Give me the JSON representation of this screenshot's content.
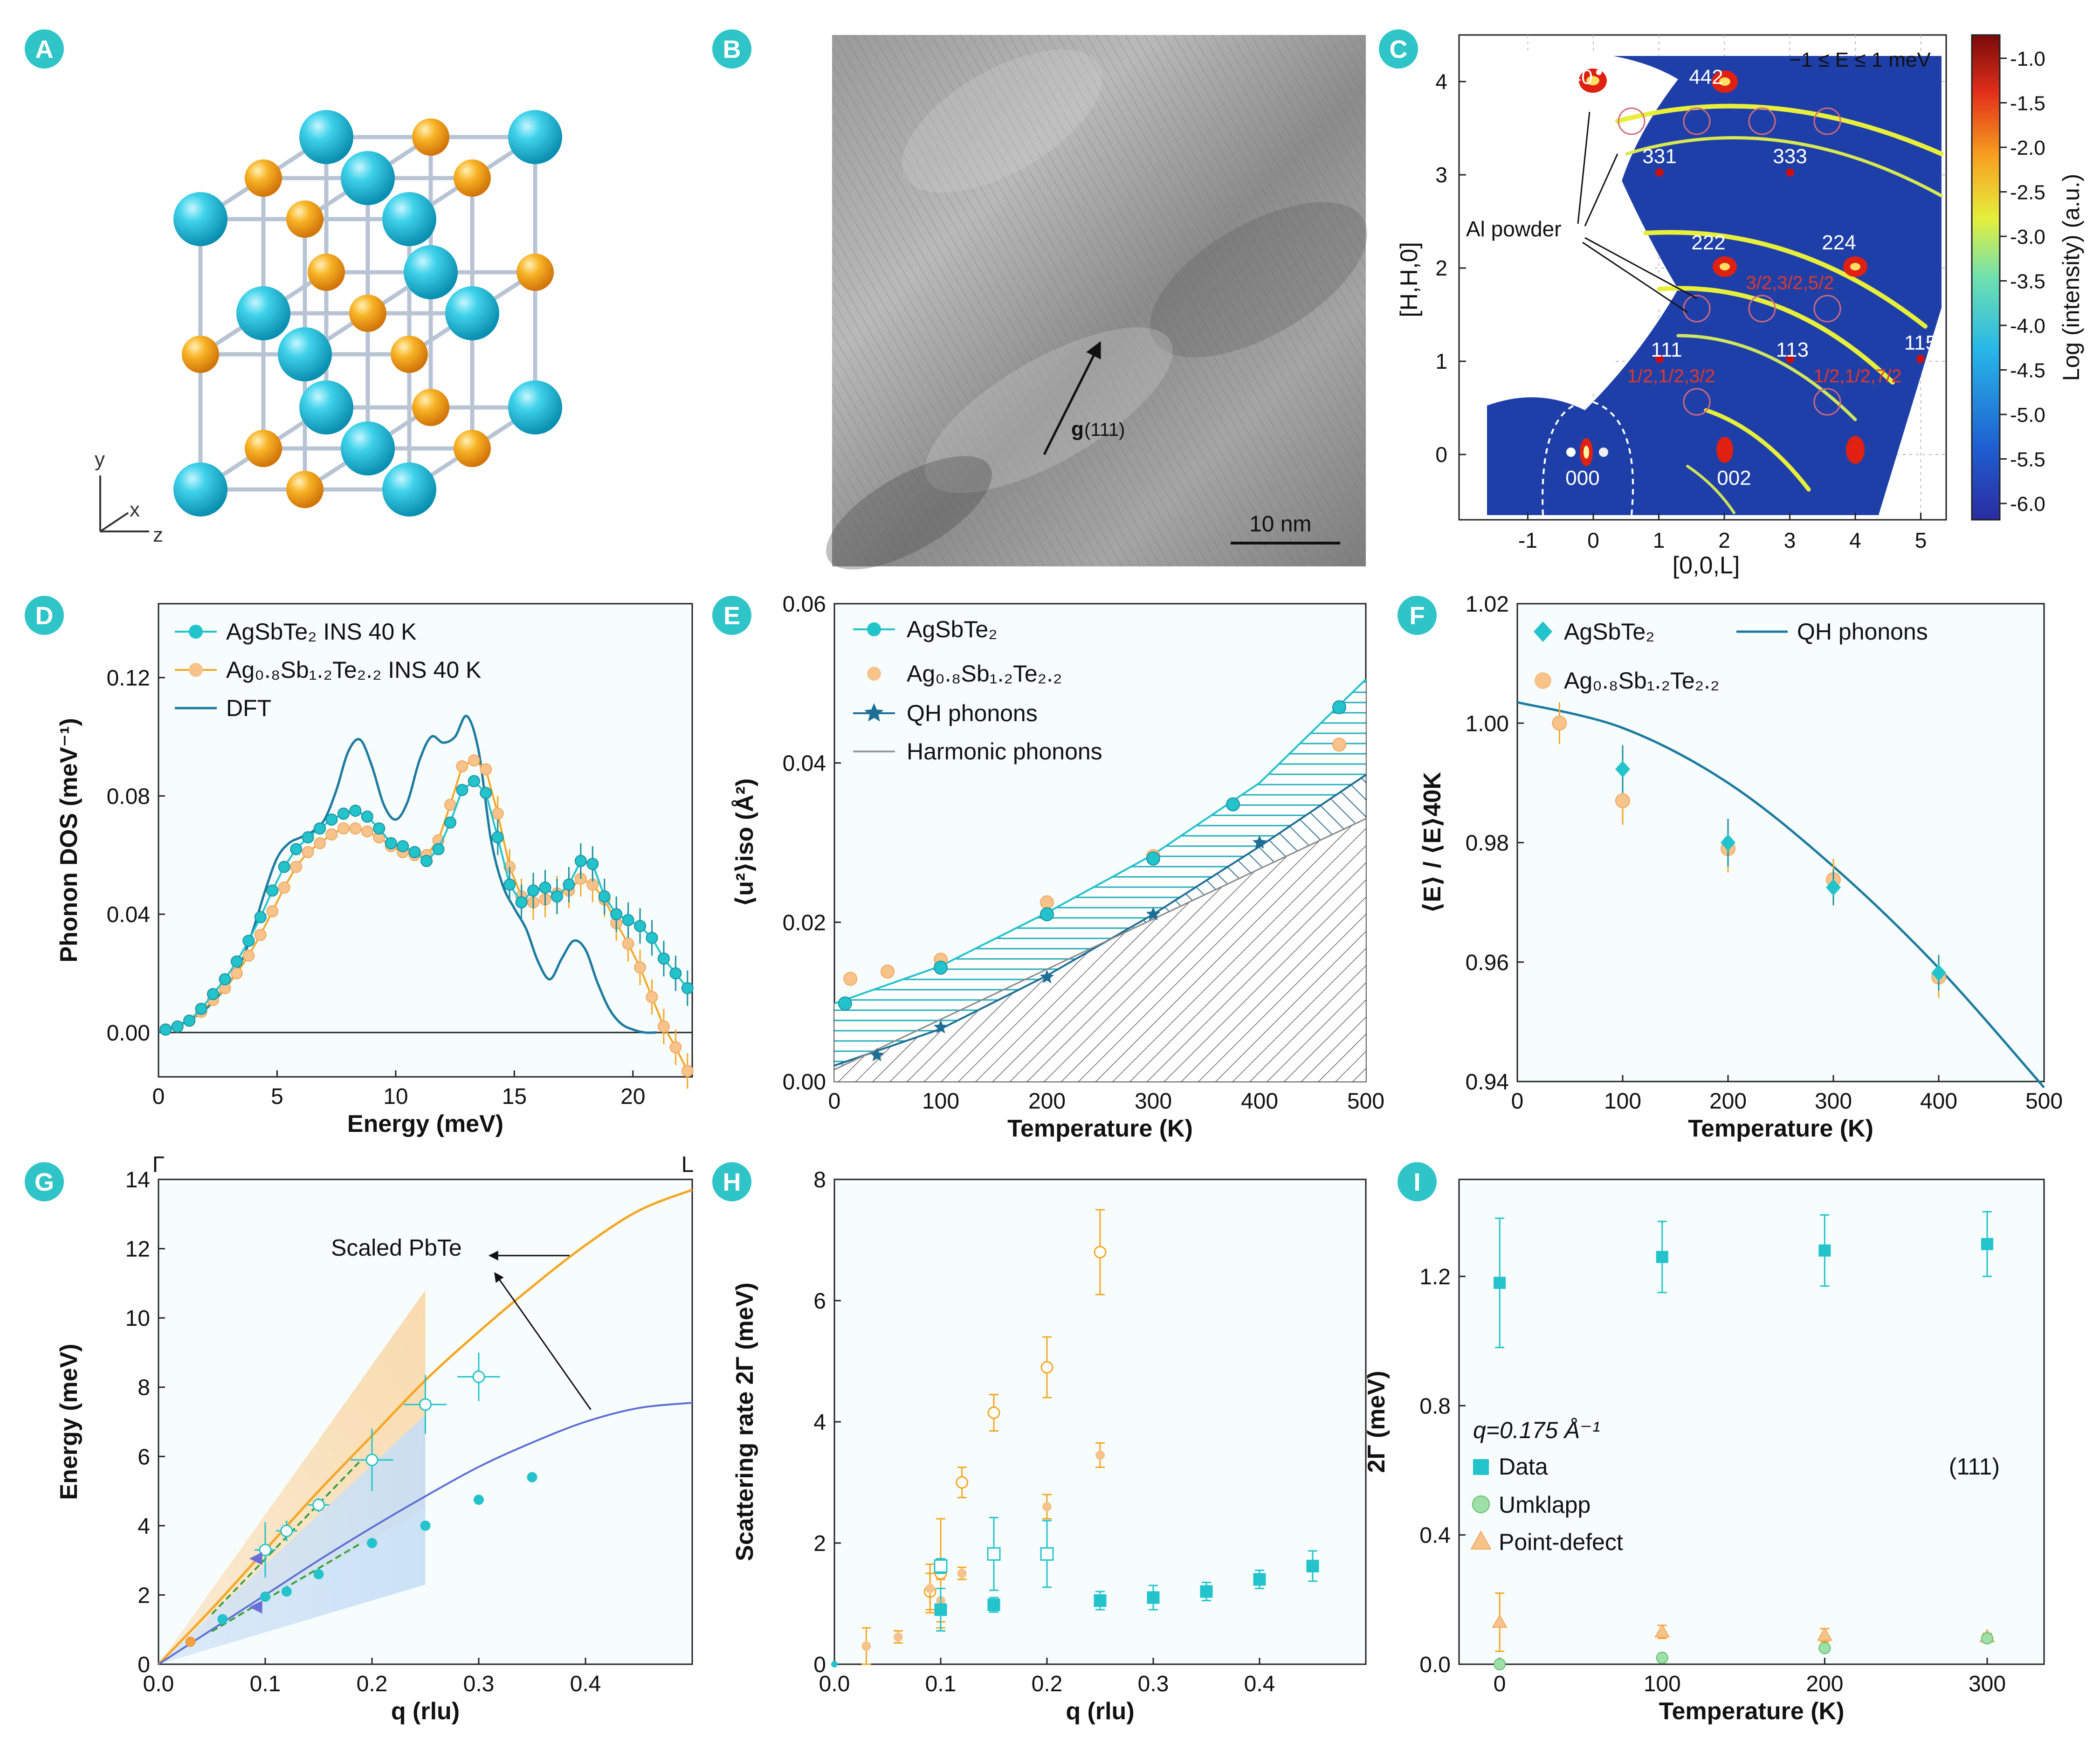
{
  "colors": {
    "teal": "#23c3cc",
    "teal_dark": "#1a8fa0",
    "orange": "#f5a623",
    "peach": "#f7c38b",
    "dft_blue": "#1b7aa0",
    "navy": "#2a5f9e",
    "badge": "#2fc4c7",
    "cyan_atom": "#1ec3dc",
    "gold_atom": "#f6a21a",
    "pbte_blue": "#5b6fd6"
  },
  "panels": {
    "A": {
      "letter": "A",
      "axes": {
        "y": "y",
        "x": "x",
        "z": "z"
      }
    },
    "B": {
      "letter": "B",
      "vector": "g",
      "vector_index": "(111)",
      "scalebar": "10 nm"
    },
    "C": {
      "letter": "C",
      "energy_window": "−1 ≤ E ≤ 1 meV",
      "xlabel": "[0,0,L]",
      "ylabel": "[H,H,0]",
      "xticks": [
        "-1",
        "0",
        "1",
        "2",
        "3",
        "4",
        "5"
      ],
      "yticks": [
        "0",
        "1",
        "2",
        "3",
        "4"
      ],
      "colorbar_label": "Log (intensity) (a.u.)",
      "colorbar_ticks": [
        "-1.0",
        "-1.5",
        "-2.0",
        "-2.5",
        "-3.0",
        "-3.5",
        "-4.0",
        "-4.5",
        "-5.0",
        "-5.5",
        "-6.0"
      ],
      "al_label": "Al powder",
      "peaks": [
        "440",
        "442",
        "331",
        "333",
        "222",
        "224",
        "111",
        "113",
        "115",
        "000",
        "002"
      ],
      "half_labels": [
        "3/2,3/2,5/2",
        "1/2,1/2,3/2",
        "1/2,1/2,7/2"
      ]
    },
    "D": {
      "letter": "D"
    },
    "E": {
      "letter": "E"
    },
    "F": {
      "letter": "F"
    },
    "G": {
      "letter": "G",
      "gamma": "Γ",
      "L": "L",
      "annotation": "Scaled PbTe"
    },
    "H": {
      "letter": "H"
    },
    "I": {
      "letter": "I",
      "q_label": "q=0.175 Å⁻¹",
      "index": "(111)"
    }
  },
  "chart_data": [
    {
      "panel": "D",
      "type": "line",
      "xlabel": "Energy (meV)",
      "ylabel": "Phonon DOS (meV⁻¹)",
      "xlim": [
        0,
        22.5
      ],
      "ylim": [
        -0.015,
        0.145
      ],
      "xticks": [
        0,
        5,
        10,
        15,
        20
      ],
      "yticks": [
        0.0,
        0.04,
        0.08,
        0.12
      ],
      "ytick_labels": [
        "0.00",
        "0.04",
        "0.08",
        "0.12"
      ],
      "legend": [
        "AgSbTe₂ INS 40 K",
        "Ag₀.₈Sb₁.₂Te₂.₂ INS 40 K",
        "DFT"
      ],
      "series": [
        {
          "name": "AgSbTe₂ INS 40 K",
          "x": [
            0.3,
            0.8,
            1.3,
            1.8,
            2.3,
            2.8,
            3.3,
            3.8,
            4.3,
            4.8,
            5.3,
            5.8,
            6.3,
            6.8,
            7.3,
            7.8,
            8.3,
            8.8,
            9.3,
            9.8,
            10.3,
            10.8,
            11.3,
            11.8,
            12.3,
            12.8,
            13.3,
            13.8,
            14.3,
            14.8,
            15.3,
            15.8,
            16.3,
            16.8,
            17.3,
            17.8,
            18.3,
            18.8,
            19.3,
            19.8,
            20.3,
            20.8,
            21.3,
            21.8,
            22.3
          ],
          "y": [
            0.001,
            0.002,
            0.004,
            0.008,
            0.013,
            0.018,
            0.024,
            0.031,
            0.039,
            0.048,
            0.056,
            0.062,
            0.066,
            0.069,
            0.072,
            0.074,
            0.075,
            0.073,
            0.069,
            0.064,
            0.063,
            0.061,
            0.058,
            0.062,
            0.071,
            0.082,
            0.085,
            0.081,
            0.066,
            0.05,
            0.044,
            0.048,
            0.049,
            0.046,
            0.05,
            0.058,
            0.057,
            0.046,
            0.04,
            0.038,
            0.036,
            0.032,
            0.025,
            0.02,
            0.015
          ]
        },
        {
          "name": "Ag₀.₈Sb₁.₂Te₂.₂ INS 40 K",
          "x": [
            0.3,
            0.8,
            1.3,
            1.8,
            2.3,
            2.8,
            3.3,
            3.8,
            4.3,
            4.8,
            5.3,
            5.8,
            6.3,
            6.8,
            7.3,
            7.8,
            8.3,
            8.8,
            9.3,
            9.8,
            10.3,
            10.8,
            11.3,
            11.8,
            12.3,
            12.8,
            13.3,
            13.8,
            14.3,
            14.8,
            15.3,
            15.8,
            16.3,
            16.8,
            17.3,
            17.8,
            18.3,
            18.8,
            19.3,
            19.8,
            20.3,
            20.8,
            21.3,
            21.8,
            22.3
          ],
          "y": [
            0.001,
            0.002,
            0.004,
            0.007,
            0.011,
            0.015,
            0.02,
            0.026,
            0.033,
            0.041,
            0.049,
            0.056,
            0.061,
            0.064,
            0.067,
            0.069,
            0.069,
            0.068,
            0.066,
            0.063,
            0.061,
            0.06,
            0.06,
            0.065,
            0.077,
            0.09,
            0.092,
            0.089,
            0.074,
            0.056,
            0.046,
            0.044,
            0.045,
            0.047,
            0.048,
            0.052,
            0.05,
            0.045,
            0.037,
            0.03,
            0.022,
            0.012,
            0.002,
            -0.005,
            -0.013
          ]
        },
        {
          "name": "DFT",
          "x": [
            0,
            1,
            2,
            3,
            3.5,
            4,
            4.5,
            5,
            5.5,
            6,
            6.5,
            7,
            7.5,
            8,
            8.5,
            9,
            9.5,
            10,
            10.5,
            11,
            11.5,
            12,
            12.5,
            13,
            13.5,
            14,
            14.5,
            15,
            15.5,
            16,
            16.5,
            17,
            17.5,
            18,
            18.5,
            19,
            19.5,
            20,
            20.5,
            21
          ],
          "y": [
            0,
            0.003,
            0.008,
            0.017,
            0.024,
            0.035,
            0.048,
            0.059,
            0.064,
            0.066,
            0.068,
            0.072,
            0.082,
            0.095,
            0.099,
            0.09,
            0.077,
            0.072,
            0.078,
            0.092,
            0.1,
            0.098,
            0.1,
            0.107,
            0.095,
            0.066,
            0.05,
            0.042,
            0.035,
            0.024,
            0.018,
            0.025,
            0.031,
            0.028,
            0.017,
            0.008,
            0.003,
            0.001,
            0,
            0
          ]
        }
      ]
    },
    {
      "panel": "E",
      "type": "line",
      "xlabel": "Temperature (K)",
      "ylabel": "⟨u²⟩iso (Å²)",
      "xlim": [
        0,
        500
      ],
      "ylim": [
        0,
        0.06
      ],
      "xticks": [
        0,
        100,
        200,
        300,
        400,
        500
      ],
      "yticks": [
        0,
        0.02,
        0.04,
        0.06
      ],
      "ytick_labels": [
        "0.00",
        "0.02",
        "0.04",
        "0.06"
      ],
      "legend": [
        "AgSbTe₂",
        "Ag₀.₈Sb₁.₂Te₂.₂",
        "QH phonons",
        "Harmonic phonons"
      ],
      "series": [
        {
          "name": "AgSbTe₂",
          "x": [
            10,
            100,
            200,
            300,
            375,
            475
          ],
          "y": [
            0.0098,
            0.0143,
            0.021,
            0.028,
            0.0348,
            0.047
          ]
        },
        {
          "name": "Ag₀.₈Sb₁.₂Te₂.₂",
          "x": [
            15,
            50,
            100,
            200,
            300,
            475
          ],
          "y": [
            0.0129,
            0.0138,
            0.0153,
            0.0225,
            0.0283,
            0.0423
          ]
        },
        {
          "name": "QH phonons",
          "x": [
            40,
            100,
            200,
            300,
            400
          ],
          "y": [
            0.0033,
            0.0068,
            0.0131,
            0.021,
            0.03
          ]
        }
      ],
      "bands": {
        "harmonic_line": {
          "x": [
            0,
            500
          ],
          "y": [
            0.0015,
            0.033
          ]
        },
        "qh_line": {
          "x": [
            0,
            100,
            200,
            300,
            400,
            500
          ],
          "y": [
            0.002,
            0.0066,
            0.0133,
            0.021,
            0.0295,
            0.0385
          ]
        },
        "upper_line": {
          "x": [
            0,
            100,
            200,
            300,
            400,
            500
          ],
          "y": [
            0.0098,
            0.0145,
            0.0212,
            0.0285,
            0.0375,
            0.0505
          ]
        }
      }
    },
    {
      "panel": "F",
      "type": "scatter",
      "xlabel": "Temperature (K)",
      "ylabel": "⟨E⟩ / ⟨E⟩40K",
      "xlim": [
        0,
        500
      ],
      "ylim": [
        0.94,
        1.02
      ],
      "xticks": [
        0,
        100,
        200,
        300,
        400,
        500
      ],
      "yticks": [
        0.94,
        0.96,
        0.98,
        1.0,
        1.02
      ],
      "ytick_labels": [
        "0.94",
        "0.96",
        "0.98",
        "1.00",
        "1.02"
      ],
      "legend": [
        "AgSbTe₂",
        "Ag₀.₈Sb₁.₂Te₂.₂",
        "QH phonons"
      ],
      "series": [
        {
          "name": "AgSbTe₂",
          "x": [
            100,
            200,
            300,
            400
          ],
          "y": [
            0.9923,
            0.98,
            0.9725,
            0.9582
          ],
          "err": [
            0.004,
            0.004,
            0.003,
            0.003
          ]
        },
        {
          "name": "Ag₀.₈Sb₁.₂Te₂.₂",
          "x": [
            40,
            100,
            200,
            300,
            400
          ],
          "y": [
            1.0,
            0.987,
            0.979,
            0.9738,
            0.9575
          ],
          "err": [
            0.0035,
            0.004,
            0.004,
            0.0035,
            0.0035
          ]
        },
        {
          "name": "QH phonons",
          "x": [
            0,
            100,
            200,
            300,
            400,
            500
          ],
          "y": [
            1.0035,
            0.9992,
            0.99,
            0.976,
            0.959,
            0.939
          ]
        }
      ]
    },
    {
      "panel": "G",
      "type": "scatter",
      "xlabel": "q (rlu)",
      "ylabel": "Energy (meV)",
      "xlim": [
        0,
        0.5
      ],
      "ylim": [
        0,
        14
      ],
      "xticks": [
        0,
        0.1,
        0.2,
        0.3,
        0.4
      ],
      "yticks": [
        0,
        2,
        4,
        6,
        8,
        10,
        12,
        14
      ],
      "xtick_labels": [
        "0.0",
        "0.1",
        "0.2",
        "0.3",
        "0.4"
      ],
      "series": [
        {
          "name": "filled",
          "x": [
            0.03,
            0.06,
            0.1,
            0.12,
            0.15,
            0.2,
            0.25,
            0.3,
            0.35
          ],
          "y": [
            0.65,
            1.3,
            1.95,
            2.1,
            2.6,
            3.5,
            4.0,
            4.75,
            5.4
          ]
        },
        {
          "name": "open",
          "x": [
            0.1,
            0.12,
            0.15,
            0.2,
            0.25,
            0.3
          ],
          "y": [
            3.3,
            3.85,
            4.6,
            5.9,
            7.5,
            8.3
          ],
          "xerr": [
            0.01,
            0.01,
            0.01,
            0.02,
            0.02,
            0.02
          ],
          "yerr": [
            0.8,
            0.3,
            0.2,
            0.9,
            0.85,
            0.7
          ]
        },
        {
          "name": "pbte_orange",
          "x": [
            0,
            0.05,
            0.1,
            0.15,
            0.2,
            0.25,
            0.3,
            0.35,
            0.4,
            0.45,
            0.5
          ],
          "y": [
            0,
            1.6,
            3.3,
            5.0,
            6.6,
            8.2,
            9.6,
            10.9,
            12.1,
            13.1,
            13.7
          ]
        },
        {
          "name": "pbte_blue",
          "x": [
            0,
            0.05,
            0.1,
            0.15,
            0.2,
            0.25,
            0.3,
            0.35,
            0.4,
            0.45,
            0.5
          ],
          "y": [
            0,
            1.0,
            2.0,
            3.0,
            3.95,
            4.85,
            5.7,
            6.4,
            7.0,
            7.4,
            7.55
          ]
        }
      ]
    },
    {
      "panel": "H",
      "type": "scatter",
      "xlabel": "q (rlu)",
      "ylabel": "Scattering rate 2Γ (meV)",
      "xlim": [
        0,
        0.5
      ],
      "ylim": [
        0,
        8
      ],
      "xticks": [
        0,
        0.1,
        0.2,
        0.3,
        0.4
      ],
      "yticks": [
        0,
        2,
        4,
        6,
        8
      ],
      "xtick_labels": [
        "0.0",
        "0.1",
        "0.2",
        "0.3",
        "0.4"
      ],
      "series": [
        {
          "name": "teal_filled",
          "x": [
            0.1,
            0.15,
            0.25,
            0.3,
            0.35,
            0.4,
            0.45
          ],
          "y": [
            0.9,
            0.98,
            1.05,
            1.1,
            1.2,
            1.4,
            1.62
          ],
          "err": [
            0.35,
            0.12,
            0.15,
            0.2,
            0.15,
            0.15,
            0.25
          ]
        },
        {
          "name": "teal_open",
          "x": [
            0.1,
            0.15,
            0.2
          ],
          "y": [
            1.62,
            1.82,
            1.82
          ],
          "err": [
            0.12,
            0.6,
            0.55
          ]
        },
        {
          "name": "peach_filled",
          "x": [
            0.03,
            0.06,
            0.09,
            0.1,
            0.12,
            0.2,
            0.25
          ],
          "y": [
            0.3,
            0.45,
            1.25,
            1.05,
            1.5,
            2.6,
            3.45
          ],
          "err": [
            0.3,
            0.1,
            0.4,
            0.35,
            0.1,
            0.2,
            0.2
          ]
        },
        {
          "name": "peach_open",
          "x": [
            0.09,
            0.1,
            0.12,
            0.15,
            0.2,
            0.25
          ],
          "y": [
            1.2,
            1.5,
            3.0,
            4.15,
            4.9,
            6.8
          ],
          "err": [
            0.3,
            0.9,
            0.25,
            0.3,
            0.5,
            0.7
          ]
        }
      ]
    },
    {
      "panel": "I",
      "type": "scatter",
      "xlabel": "Temperature (K)",
      "ylabel": "2Γ (meV)",
      "xlim": [
        -25,
        335
      ],
      "ylim": [
        0,
        1.5
      ],
      "xticks": [
        0,
        100,
        200,
        300
      ],
      "yticks": [
        0,
        0.4,
        0.8,
        1.2
      ],
      "ytick_labels": [
        "0.0",
        "0.4",
        "0.8",
        "1.2"
      ],
      "legend": [
        "Data",
        "Umklapp",
        "Point-defect"
      ],
      "series": [
        {
          "name": "Data",
          "x": [
            0,
            100,
            200,
            300
          ],
          "y": [
            1.18,
            1.26,
            1.28,
            1.3
          ],
          "err": [
            0.2,
            0.11,
            0.11,
            0.1
          ]
        },
        {
          "name": "Umklapp",
          "x": [
            0,
            100,
            200,
            300
          ],
          "y": [
            0.0,
            0.02,
            0.05,
            0.08
          ]
        },
        {
          "name": "Point-defect",
          "x": [
            0,
            100,
            200,
            300
          ],
          "y": [
            0.13,
            0.1,
            0.09,
            0.085
          ],
          "err": [
            0.09,
            0.02,
            0.02,
            0.01
          ]
        }
      ]
    }
  ]
}
